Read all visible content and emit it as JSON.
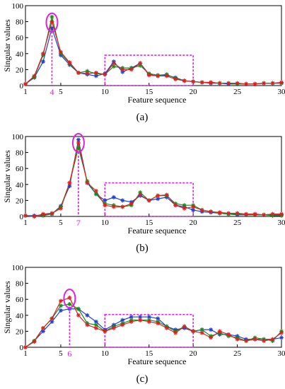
{
  "colors": {
    "highlight": "#dd22dd",
    "series": [
      "#1f3fd0",
      "#1a8a1a",
      "#e02020"
    ]
  },
  "chart_data": [
    {
      "type": "line",
      "panel_label": "(a)",
      "xlabel": "Feature sequence",
      "ylabel": "Singular values",
      "xlim": [
        1,
        30
      ],
      "ylim": [
        0,
        100
      ],
      "xticks": [
        "1",
        "5",
        "10",
        "15",
        "20",
        "25",
        "30"
      ],
      "yticks": [
        "0",
        "20",
        "40",
        "60",
        "80",
        "100"
      ],
      "highlight_tick": "4",
      "highlight_x": 4,
      "ellipse_center": [
        4,
        79
      ],
      "box_x": [
        10,
        20
      ],
      "box_y": [
        0,
        38
      ],
      "x": [
        1,
        2,
        3,
        4,
        5,
        6,
        7,
        8,
        9,
        10,
        11,
        12,
        13,
        14,
        15,
        16,
        17,
        18,
        19,
        20,
        21,
        22,
        23,
        24,
        25,
        26,
        27,
        28,
        29,
        30
      ],
      "series": [
        {
          "marker": "star",
          "values": [
            2,
            10,
            30,
            72,
            38,
            26,
            16,
            14,
            12,
            15,
            30,
            17,
            22,
            28,
            14,
            12,
            13,
            10,
            6,
            5,
            4,
            3,
            3,
            2,
            2,
            2,
            2,
            3,
            3,
            3
          ]
        },
        {
          "marker": "star",
          "values": [
            2,
            11,
            38,
            86,
            40,
            28,
            16,
            18,
            15,
            14,
            24,
            22,
            22,
            25,
            15,
            13,
            14,
            9,
            6,
            5,
            4,
            4,
            3,
            3,
            2,
            2,
            2,
            3,
            3,
            3
          ]
        },
        {
          "marker": "star",
          "values": [
            2,
            12,
            40,
            80,
            42,
            29,
            16,
            15,
            16,
            14,
            28,
            20,
            20,
            28,
            13,
            12,
            12,
            8,
            6,
            5,
            4,
            4,
            3,
            3,
            3,
            2,
            2,
            3,
            3,
            4
          ]
        }
      ]
    },
    {
      "type": "line",
      "panel_label": "(b)",
      "xlabel": "Feature sequence",
      "ylabel": "Singular values",
      "xlim": [
        1,
        30
      ],
      "ylim": [
        0,
        100
      ],
      "xticks": [
        "1",
        "5",
        "10",
        "15",
        "20",
        "25",
        "30"
      ],
      "yticks": [
        "0",
        "20",
        "40",
        "60",
        "80",
        "100"
      ],
      "highlight_tick": "7",
      "highlight_x": 7,
      "ellipse_center": [
        7,
        92
      ],
      "box_x": [
        10,
        20
      ],
      "box_y": [
        0,
        42
      ],
      "x": [
        1,
        2,
        3,
        4,
        5,
        6,
        7,
        8,
        9,
        10,
        11,
        12,
        13,
        14,
        15,
        16,
        17,
        18,
        19,
        20,
        21,
        22,
        23,
        24,
        25,
        26,
        27,
        28,
        29,
        30
      ],
      "series": [
        {
          "marker": "star",
          "values": [
            1,
            1,
            2,
            3,
            13,
            38,
            96,
            42,
            28,
            20,
            24,
            20,
            18,
            26,
            20,
            22,
            24,
            14,
            12,
            8,
            6,
            5,
            4,
            3,
            2,
            2,
            2,
            2,
            2,
            2
          ]
        },
        {
          "marker": "star",
          "values": [
            1,
            0,
            1,
            3,
            12,
            42,
            86,
            44,
            28,
            16,
            14,
            12,
            14,
            30,
            20,
            26,
            26,
            16,
            14,
            14,
            8,
            6,
            4,
            3,
            3,
            2,
            2,
            2,
            1,
            1
          ]
        },
        {
          "marker": "star",
          "values": [
            1,
            0,
            3,
            4,
            10,
            42,
            92,
            42,
            32,
            14,
            12,
            12,
            16,
            27,
            20,
            26,
            27,
            14,
            10,
            12,
            8,
            6,
            5,
            4,
            4,
            3,
            3,
            2,
            3,
            3
          ]
        }
      ]
    },
    {
      "type": "line",
      "panel_label": "(c)",
      "xlabel": "Feature sequence",
      "ylabel": "Singular values",
      "xlim": [
        1,
        30
      ],
      "ylim": [
        0,
        100
      ],
      "xticks": [
        "1",
        "5",
        "10",
        "15",
        "20",
        "25",
        "30"
      ],
      "yticks": [
        "0",
        "20",
        "40",
        "60",
        "80",
        "100"
      ],
      "highlight_tick": "6",
      "highlight_x": 6,
      "ellipse_center": [
        6,
        61
      ],
      "box_x": [
        10,
        20
      ],
      "box_y": [
        0,
        41
      ],
      "x": [
        1,
        2,
        3,
        4,
        5,
        6,
        7,
        8,
        9,
        10,
        11,
        12,
        13,
        14,
        15,
        16,
        17,
        18,
        19,
        20,
        21,
        22,
        23,
        24,
        25,
        26,
        27,
        28,
        29,
        30
      ],
      "series": [
        {
          "marker": "star",
          "values": [
            0,
            8,
            20,
            32,
            46,
            48,
            48,
            40,
            32,
            22,
            28,
            34,
            38,
            38,
            38,
            36,
            26,
            22,
            24,
            20,
            22,
            22,
            16,
            16,
            14,
            10,
            10,
            10,
            10,
            12
          ]
        },
        {
          "marker": "star",
          "values": [
            0,
            8,
            24,
            36,
            52,
            54,
            48,
            30,
            28,
            20,
            26,
            30,
            34,
            34,
            34,
            32,
            26,
            20,
            26,
            20,
            22,
            14,
            18,
            14,
            12,
            8,
            12,
            10,
            8,
            20
          ]
        },
        {
          "marker": "star",
          "values": [
            0,
            7,
            24,
            36,
            58,
            62,
            40,
            28,
            24,
            20,
            24,
            28,
            32,
            34,
            32,
            30,
            24,
            18,
            26,
            20,
            18,
            12,
            20,
            16,
            10,
            8,
            10,
            8,
            10,
            18
          ]
        }
      ]
    }
  ]
}
